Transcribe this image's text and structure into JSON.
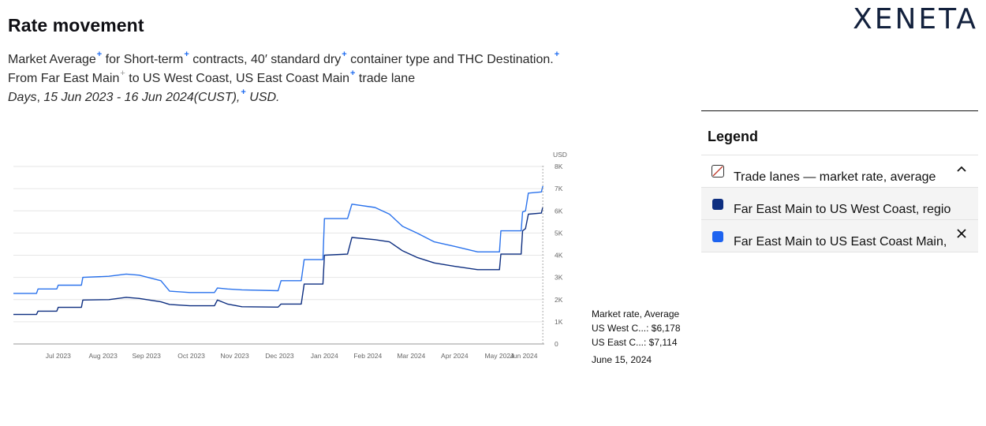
{
  "header": {
    "title": "Rate movement",
    "logo_text": "XENETA"
  },
  "description": {
    "line1": [
      {
        "text": "Market Average",
        "plus": true
      },
      {
        "text": " for Short-term",
        "plus": true
      },
      {
        "text": " contracts, 40′ standard dry",
        "plus": true
      },
      {
        "text": " container type and THC Destination.",
        "plus": true
      }
    ],
    "line2": [
      {
        "text": "From Far East Main",
        "plus": true,
        "plus_light": true
      },
      {
        "text": " to US West Coast, US East Coast Main",
        "plus": true
      },
      {
        "text": " trade lane",
        "plus": false
      }
    ],
    "line3_italic_a": "Days",
    "line3_sep": ", ",
    "line3_italic_b": "15 Jun 2023 - 16 Jun 2024(CUST),",
    "line3_end": " USD."
  },
  "tooltip": {
    "heading": "Market rate, Average",
    "row1": "US West C...: $6,178",
    "row2": "US East C...: $7,114",
    "date": "June 15, 2024"
  },
  "legend": {
    "title": "Legend",
    "rows": [
      {
        "label": "Trade lanes — market rate, average",
        "control": "^"
      },
      {
        "label": "Far East Main to US West Coast, regional",
        "color": "#0d2e80"
      },
      {
        "label": "Far East Main to US East Coast Main, regional",
        "color": "#1d63f0",
        "control": "✕"
      }
    ]
  },
  "colors": {
    "west": "#0d2e80",
    "east": "#2a72ec",
    "accent": "#1f6cf0"
  },
  "chart_data": {
    "type": "line",
    "ylabel_unit": "USD",
    "ylim": [
      0,
      8000
    ],
    "y_ticks": [
      "0",
      "1K",
      "2K",
      "3K",
      "4K",
      "5K",
      "6K",
      "7K",
      "8K"
    ],
    "x_ticks": [
      "Jul 2023",
      "Aug 2023",
      "Sep 2023",
      "Oct 2023",
      "Nov 2023",
      "Dec 2023",
      "Jan 2024",
      "Feb 2024",
      "Mar 2024",
      "Apr 2024",
      "May 2024",
      "Jun 2024"
    ],
    "x_range": [
      "2023-06-15",
      "2024-06-16"
    ],
    "grid": true,
    "series": [
      {
        "name": "Far East Main to US West Coast, regional",
        "points": [
          [
            "2023-06-15",
            1330
          ],
          [
            "2023-07-01",
            1330
          ],
          [
            "2023-07-02",
            1480
          ],
          [
            "2023-07-15",
            1480
          ],
          [
            "2023-07-16",
            1650
          ],
          [
            "2023-08-01",
            1650
          ],
          [
            "2023-08-02",
            1980
          ],
          [
            "2023-08-20",
            2000
          ],
          [
            "2023-09-01",
            2100
          ],
          [
            "2023-09-10",
            2050
          ],
          [
            "2023-09-25",
            1900
          ],
          [
            "2023-10-01",
            1780
          ],
          [
            "2023-10-15",
            1720
          ],
          [
            "2023-11-01",
            1720
          ],
          [
            "2023-11-03",
            1980
          ],
          [
            "2023-11-10",
            1800
          ],
          [
            "2023-11-20",
            1680
          ],
          [
            "2023-12-15",
            1660
          ],
          [
            "2023-12-17",
            1800
          ],
          [
            "2023-12-31",
            1800
          ],
          [
            "2024-01-02",
            2700
          ],
          [
            "2024-01-15",
            2700
          ],
          [
            "2024-01-16",
            4000
          ],
          [
            "2024-02-01",
            4050
          ],
          [
            "2024-02-04",
            4800
          ],
          [
            "2024-02-20",
            4700
          ],
          [
            "2024-03-01",
            4600
          ],
          [
            "2024-03-10",
            4200
          ],
          [
            "2024-03-20",
            3900
          ],
          [
            "2024-04-01",
            3650
          ],
          [
            "2024-04-15",
            3500
          ],
          [
            "2024-05-01",
            3350
          ],
          [
            "2024-05-16",
            3350
          ],
          [
            "2024-05-17",
            4050
          ],
          [
            "2024-05-31",
            4050
          ],
          [
            "2024-06-01",
            5100
          ],
          [
            "2024-06-03",
            5200
          ],
          [
            "2024-06-05",
            5850
          ],
          [
            "2024-06-14",
            5900
          ],
          [
            "2024-06-15",
            6178
          ]
        ]
      },
      {
        "name": "Far East Main to US East Coast Main, regional",
        "points": [
          [
            "2023-06-15",
            2280
          ],
          [
            "2023-07-01",
            2280
          ],
          [
            "2023-07-02",
            2480
          ],
          [
            "2023-07-15",
            2480
          ],
          [
            "2023-07-16",
            2650
          ],
          [
            "2023-08-01",
            2650
          ],
          [
            "2023-08-02",
            3000
          ],
          [
            "2023-08-20",
            3050
          ],
          [
            "2023-09-01",
            3150
          ],
          [
            "2023-09-10",
            3100
          ],
          [
            "2023-09-25",
            2850
          ],
          [
            "2023-10-01",
            2380
          ],
          [
            "2023-10-15",
            2320
          ],
          [
            "2023-11-01",
            2320
          ],
          [
            "2023-11-03",
            2520
          ],
          [
            "2023-11-10",
            2480
          ],
          [
            "2023-11-20",
            2440
          ],
          [
            "2023-12-15",
            2400
          ],
          [
            "2023-12-17",
            2850
          ],
          [
            "2023-12-31",
            2850
          ],
          [
            "2024-01-02",
            3800
          ],
          [
            "2024-01-15",
            3800
          ],
          [
            "2024-01-16",
            5650
          ],
          [
            "2024-02-01",
            5650
          ],
          [
            "2024-02-04",
            6300
          ],
          [
            "2024-02-20",
            6150
          ],
          [
            "2024-03-01",
            5850
          ],
          [
            "2024-03-10",
            5300
          ],
          [
            "2024-03-20",
            5000
          ],
          [
            "2024-04-01",
            4600
          ],
          [
            "2024-04-15",
            4400
          ],
          [
            "2024-05-01",
            4150
          ],
          [
            "2024-05-16",
            4150
          ],
          [
            "2024-05-17",
            5100
          ],
          [
            "2024-05-31",
            5100
          ],
          [
            "2024-06-01",
            5950
          ],
          [
            "2024-06-03",
            6000
          ],
          [
            "2024-06-05",
            6800
          ],
          [
            "2024-06-14",
            6850
          ],
          [
            "2024-06-15",
            7114
          ]
        ]
      }
    ]
  }
}
